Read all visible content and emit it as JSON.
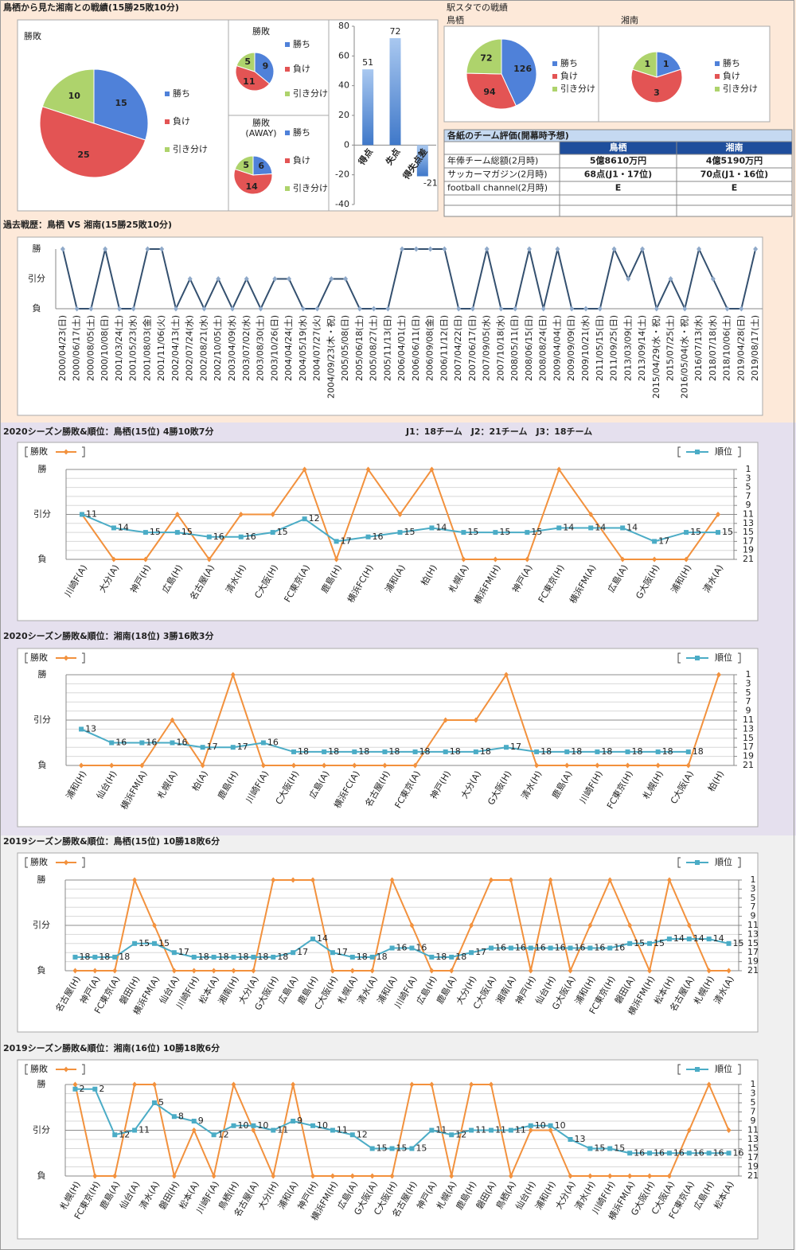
{
  "sections": {
    "top": "鳥栖から見た湘南との戦績(15勝25敗10分)",
    "station": "駅スタでの戦績",
    "league": "J1：18チーム　J2：21チーム　J3：18チーム"
  },
  "table": {
    "title": "各紙のチーム評価(開幕時予想)",
    "columns": [
      "鳥栖",
      "湘南"
    ],
    "rows": [
      {
        "label": "年俸チーム総額(2月時)",
        "cells": [
          "5億8610万円",
          "4億5190万円"
        ]
      },
      {
        "label": "サッカーマガジン(2月時)",
        "cells": [
          "68点(J1・17位)",
          "70点(J1・16位)"
        ]
      },
      {
        "label": "football channel(2月時)",
        "cells": [
          "E",
          "E"
        ]
      }
    ]
  },
  "chart_data": [
    {
      "type": "pie",
      "title": "勝敗",
      "categories": [
        "勝ち",
        "負け",
        "引き分け"
      ],
      "values": [
        15,
        25,
        10
      ],
      "colors": [
        "#4f81d9",
        "#e35454",
        "#aed36c"
      ]
    },
    {
      "type": "pie",
      "title": "勝敗",
      "categories": [
        "勝ち",
        "負け",
        "引き分け"
      ],
      "values": [
        9,
        11,
        5
      ],
      "colors": [
        "#4f81d9",
        "#e35454",
        "#aed36c"
      ]
    },
    {
      "type": "pie",
      "title": "勝敗\n(AWAY)",
      "categories": [
        "勝ち",
        "負け",
        "引き分け"
      ],
      "values": [
        6,
        14,
        5
      ],
      "colors": [
        "#4f81d9",
        "#e35454",
        "#aed36c"
      ]
    },
    {
      "type": "bar",
      "categories": [
        "得点",
        "失点",
        "得失点差"
      ],
      "values": [
        51,
        72,
        -21
      ],
      "color": "#5b8fd8",
      "ylim": [
        -40,
        80
      ],
      "yticks": [
        -40,
        -20,
        0,
        20,
        40,
        60,
        80
      ]
    },
    {
      "type": "pie",
      "title": "鳥栖",
      "categories": [
        "勝ち",
        "負け",
        "引き分け"
      ],
      "values": [
        126,
        94,
        72
      ],
      "colors": [
        "#4f81d9",
        "#e35454",
        "#aed36c"
      ]
    },
    {
      "type": "pie",
      "title": "湘南",
      "categories": [
        "勝ち",
        "負け",
        "引き分け"
      ],
      "values": [
        1,
        3,
        1
      ],
      "colors": [
        "#4f81d9",
        "#e35454",
        "#aed36c"
      ]
    },
    {
      "type": "line",
      "title": "過去戦歴：鳥栖 VS 湘南(15勝25敗10分)",
      "categories": [
        "2000/04/23(日)",
        "2000/06/17(土)",
        "2000/08/05(土)",
        "2000/10/08(日)",
        "2001/03/24(土)",
        "2001/05/23(水)",
        "2001/08/03(金)",
        "2001/11/06(火)",
        "2002/04/13(土)",
        "2002/07/24(水)",
        "2002/08/21(水)",
        "2002/10/05(土)",
        "2003/04/09(水)",
        "2003/07/02(水)",
        "2003/08/30(土)",
        "2003/10/26(日)",
        "2004/04/24(土)",
        "2004/05/19(水)",
        "2004/07/27(火)",
        "2004/09/23(木・祝)",
        "2005/05/08(日)",
        "2005/06/18(土)",
        "2005/08/27(土)",
        "2005/11/13(日)",
        "2006/04/01(土)",
        "2006/06/11(日)",
        "2006/09/08(金)",
        "2006/11/12(日)",
        "2007/04/22(日)",
        "2007/06/17(日)",
        "2007/09/05(水)",
        "2007/10/18(水)",
        "2008/05/11(日)",
        "2008/06/15(日)",
        "2008/08/24(日)",
        "2009/04/04(土)",
        "2009/09/09(日)",
        "2009/10/21(水)",
        "2011/05/15(日)",
        "2011/09/25(日)",
        "2013/03/09(土)",
        "2013/09/14(土)",
        "2015/04/29(水・祝)",
        "2015/07/25(土)",
        "2016/05/04(水・祝)",
        "2016/07/13(水)",
        "2018/07/18(水)",
        "2018/10/06(土)",
        "2019/04/28(日)",
        "2019/08/17(土)"
      ],
      "values": [
        1,
        -1,
        -1,
        1,
        -1,
        -1,
        1,
        1,
        -1,
        0,
        -1,
        0,
        -1,
        0,
        -1,
        0,
        0,
        -1,
        -1,
        0,
        0,
        -1,
        -1,
        -1,
        1,
        1,
        1,
        1,
        -1,
        -1,
        1,
        -1,
        -1,
        1,
        -1,
        1,
        -1,
        -1,
        -1,
        1,
        0,
        1,
        -1,
        0,
        -1,
        1,
        0,
        -1,
        -1,
        1
      ],
      "color": "#34506f",
      "marker": "diamond",
      "ylim": [
        -1,
        1
      ],
      "yticks": [
        {
          "value": 1,
          "label": "勝"
        },
        {
          "value": 0,
          "label": "引分"
        },
        {
          "value": -1,
          "label": "負"
        }
      ],
      "grid": false
    },
    {
      "type": "line",
      "title": "2020シーズン勝敗&順位：鳥栖(15位) 4勝10敗7分",
      "categories": [
        "川崎F(A)",
        "大分(A)",
        "神戸(H)",
        "広島(H)",
        "名古屋(A)",
        "清水(H)",
        "C大阪(H)",
        "FC東京(A)",
        "鹿島(H)",
        "横浜FC(H)",
        "浦和(A)",
        "柏(H)",
        "札幌(A)",
        "横浜FM(H)",
        "神戸(A)",
        "FC東京(H)",
        "横浜FM(A)",
        "広島(A)",
        "G大阪(H)",
        "浦和(H)",
        "清水(A)"
      ],
      "series": [
        {
          "name": "勝敗",
          "color": "#f2913d",
          "marker": "diamond",
          "values": [
            0,
            -1,
            -1,
            0,
            -1,
            0,
            0,
            1,
            -1,
            1,
            0,
            1,
            -1,
            -1,
            -1,
            1,
            0,
            -1,
            -1,
            -1,
            0
          ]
        },
        {
          "name": "順位",
          "color": "#4bacc6",
          "marker": "square",
          "axis": "y2",
          "values": [
            11,
            14,
            15,
            15,
            16,
            16,
            15,
            12,
            17,
            16,
            15,
            14,
            15,
            15,
            15,
            14,
            14,
            14,
            17,
            15,
            15
          ]
        }
      ],
      "ylim": [
        -1,
        1
      ],
      "yticks": [
        {
          "value": 1,
          "label": "勝"
        },
        {
          "value": 0,
          "label": "引分"
        },
        {
          "value": -1,
          "label": "負"
        }
      ],
      "y2lim": [
        21,
        1
      ],
      "y2ticks": [
        1,
        3,
        5,
        7,
        9,
        11,
        13,
        15,
        17,
        19,
        21
      ],
      "grid": true
    },
    {
      "type": "line",
      "title": "2020シーズン勝敗&順位：湘南(18位) 3勝16敗3分",
      "categories": [
        "浦和(H)",
        "仙台(H)",
        "横浜FM(A)",
        "札幌(A)",
        "柏(A)",
        "鹿島(H)",
        "川崎F(A)",
        "C大阪(H)",
        "広島(A)",
        "横浜FC(A)",
        "名古屋(H)",
        "FC東京(A)",
        "神戸(H)",
        "大分(A)",
        "G大阪(H)",
        "清水(H)",
        "鹿島(A)",
        "川崎F(H)",
        "FC東京(H)",
        "札幌(H)",
        "C大阪(A)",
        "柏(H)"
      ],
      "series": [
        {
          "name": "勝敗",
          "color": "#f2913d",
          "marker": "diamond",
          "values": [
            -1,
            -1,
            -1,
            0,
            -1,
            1,
            -1,
            -1,
            -1,
            -1,
            -1,
            -1,
            0,
            0,
            1,
            -1,
            -1,
            -1,
            -1,
            -1,
            -1,
            1
          ]
        },
        {
          "name": "順位",
          "color": "#4bacc6",
          "marker": "square",
          "axis": "y2",
          "values": [
            13,
            16,
            16,
            16,
            17,
            17,
            16,
            18,
            18,
            18,
            18,
            18,
            18,
            18,
            17,
            18,
            18,
            18,
            18,
            18,
            18,
            null
          ]
        }
      ],
      "ylim": [
        -1,
        1
      ],
      "yticks": [
        {
          "value": 1,
          "label": "勝"
        },
        {
          "value": 0,
          "label": "引分"
        },
        {
          "value": -1,
          "label": "負"
        }
      ],
      "y2lim": [
        21,
        1
      ],
      "y2ticks": [
        1,
        3,
        5,
        7,
        9,
        11,
        13,
        15,
        17,
        19,
        21
      ],
      "grid": true
    },
    {
      "type": "line",
      "title": "2019シーズン勝敗&順位：鳥栖(15位) 10勝18敗6分",
      "categories": [
        "名古屋(H)",
        "神戸(A)",
        "FC東京(A)",
        "磐田(H)",
        "横浜FM(A)",
        "仙台(A)",
        "川崎F(H)",
        "松本(A)",
        "湘南(H)",
        "大分(A)",
        "G大阪(H)",
        "広島(A)",
        "鹿島(H)",
        "C大阪(H)",
        "札幌(A)",
        "清水(A)",
        "浦和(A)",
        "川崎F(A)",
        "広島(H)",
        "鹿島(A)",
        "大分(H)",
        "C大阪(A)",
        "湘南(A)",
        "神戸(H)",
        "仙台(H)",
        "G大阪(A)",
        "浦和(H)",
        "FC東京(H)",
        "磐田(A)",
        "横浜FM(H)",
        "松本(H)",
        "名古屋(A)",
        "札幌(H)",
        "清水(A)"
      ],
      "series": [
        {
          "name": "勝敗",
          "color": "#f2913d",
          "marker": "diamond",
          "values": [
            -1,
            -1,
            -1,
            1,
            0,
            -1,
            -1,
            -1,
            -1,
            -1,
            1,
            1,
            1,
            -1,
            -1,
            -1,
            1,
            0,
            -1,
            -1,
            0,
            1,
            1,
            -1,
            1,
            -1,
            0,
            1,
            0,
            -1,
            1,
            0,
            -1,
            -1
          ]
        },
        {
          "name": "順位",
          "color": "#4bacc6",
          "marker": "square",
          "axis": "y2",
          "values": [
            18,
            18,
            18,
            15,
            15,
            17,
            18,
            18,
            18,
            18,
            18,
            17,
            14,
            17,
            18,
            18,
            16,
            16,
            18,
            18,
            17,
            16,
            16,
            16,
            16,
            16,
            16,
            16,
            15,
            15,
            14,
            14,
            14,
            15
          ]
        }
      ],
      "ylim": [
        -1,
        1
      ],
      "yticks": [
        {
          "value": 1,
          "label": "勝"
        },
        {
          "value": 0,
          "label": "引分"
        },
        {
          "value": -1,
          "label": "負"
        }
      ],
      "y2lim": [
        21,
        1
      ],
      "y2ticks": [
        1,
        3,
        5,
        7,
        9,
        11,
        13,
        15,
        17,
        19,
        21
      ],
      "grid": true
    },
    {
      "type": "line",
      "title": "2019シーズン勝敗&順位：湘南(16位) 10勝18敗6分",
      "categories": [
        "札幌(H)",
        "FC東京(H)",
        "鹿島(A)",
        "仙台(A)",
        "清水(A)",
        "磐田(H)",
        "松本(A)",
        "川崎F(A)",
        "鳥栖(H)",
        "名古屋(A)",
        "大分(H)",
        "浦和(A)",
        "神戸(H)",
        "横浜FM(H)",
        "広島(A)",
        "G大阪(A)",
        "C大阪(H)",
        "名古屋(H)",
        "神戸(A)",
        "札幌(A)",
        "鹿島(H)",
        "磐田(A)",
        "鳥栖(A)",
        "仙台(H)",
        "浦和(H)",
        "大分(A)",
        "清水(H)",
        "川崎F(H)",
        "横浜FM(A)",
        "G大阪(H)",
        "C大阪(A)",
        "FC東京(A)",
        "広島(H)",
        "松本(A)"
      ],
      "series": [
        {
          "name": "勝敗",
          "color": "#f2913d",
          "marker": "diamond",
          "values": [
            1,
            -1,
            -1,
            1,
            1,
            -1,
            0,
            -1,
            1,
            0,
            -1,
            1,
            -1,
            -1,
            -1,
            -1,
            -1,
            1,
            1,
            -1,
            1,
            1,
            -1,
            0,
            0,
            -1,
            -1,
            -1,
            -1,
            -1,
            -1,
            0,
            1,
            0
          ]
        },
        {
          "name": "順位",
          "color": "#4bacc6",
          "marker": "square",
          "axis": "y2",
          "values": [
            2,
            2,
            12,
            11,
            5,
            8,
            9,
            12,
            10,
            10,
            11,
            9,
            10,
            11,
            12,
            15,
            15,
            15,
            11,
            12,
            11,
            11,
            11,
            10,
            10,
            13,
            15,
            15,
            16,
            16,
            16,
            16,
            16,
            16
          ]
        }
      ],
      "ylim": [
        -1,
        1
      ],
      "yticks": [
        {
          "value": 1,
          "label": "勝"
        },
        {
          "value": 0,
          "label": "引分"
        },
        {
          "value": -1,
          "label": "負"
        }
      ],
      "y2lim": [
        21,
        1
      ],
      "y2ticks": [
        1,
        3,
        5,
        7,
        9,
        11,
        13,
        15,
        17,
        19,
        21
      ],
      "grid": true
    }
  ]
}
